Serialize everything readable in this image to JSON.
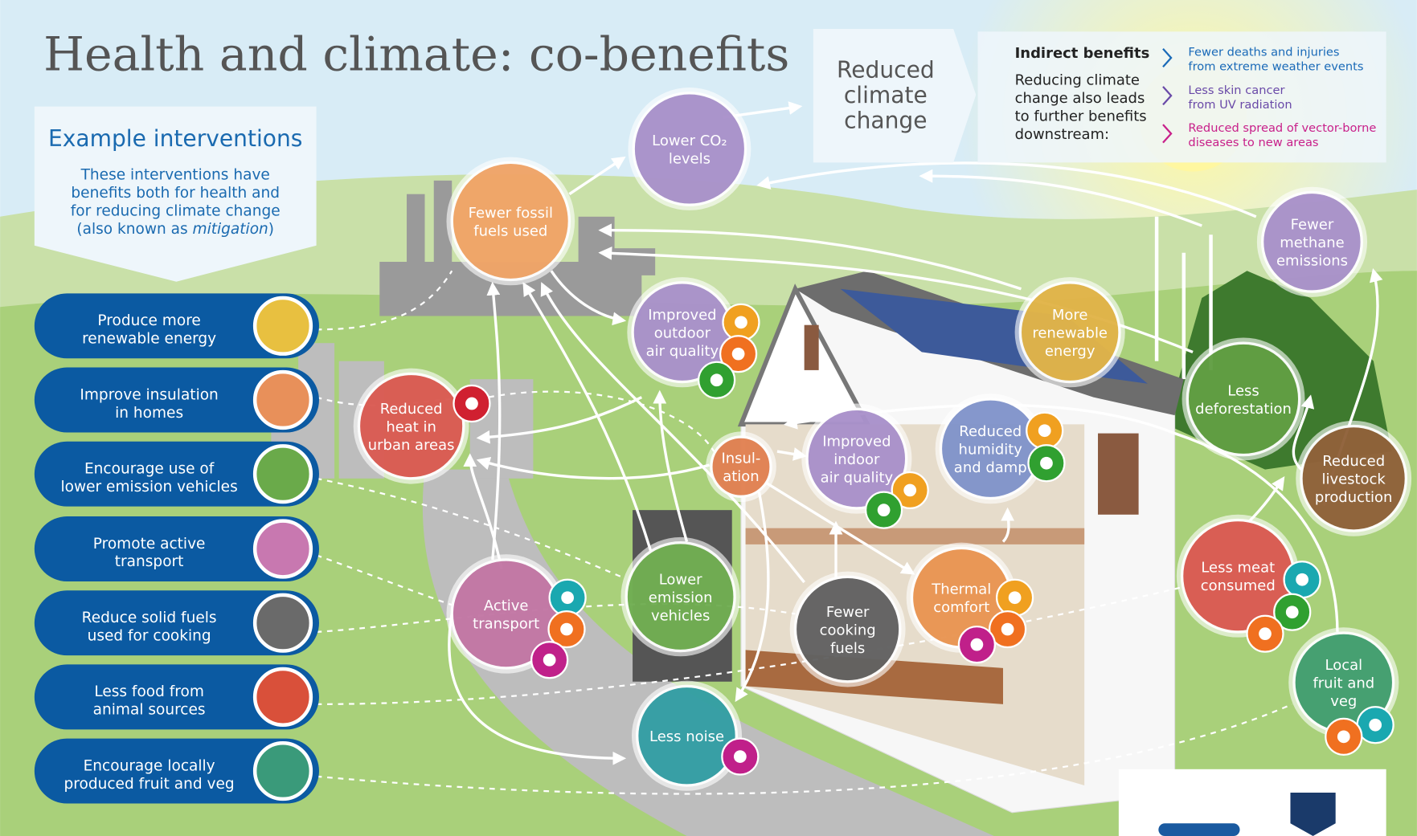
{
  "title": "Health and climate: co-benefits",
  "example_interventions": {
    "title": "Example interventions",
    "description": [
      "These interventions have",
      "benefits both for health and",
      "for reducing climate change"
    ],
    "description_end": {
      "before": "(also known as ",
      "italic": "mitigation",
      "after": ")"
    }
  },
  "interventions": [
    {
      "label": [
        "Produce more",
        "renewable energy"
      ],
      "color": "#e8c040"
    },
    {
      "label": [
        "Improve insulation",
        "in homes"
      ],
      "color": "#e8905a"
    },
    {
      "label": [
        "Encourage use of",
        "lower emission vehicles"
      ],
      "color": "#6aaa4a"
    },
    {
      "label": [
        "Promote active",
        "transport"
      ],
      "color": "#c878b0"
    },
    {
      "label": [
        "Reduce solid fuels",
        "used for cooking"
      ],
      "color": "#6a6a6a"
    },
    {
      "label": [
        "Less food from",
        "animal sources"
      ],
      "color": "#d9503a"
    },
    {
      "label": [
        "Encourage locally",
        "produced fruit and veg"
      ],
      "color": "#3a9a7a"
    }
  ],
  "reduced_climate_change": [
    "Reduced",
    "climate",
    "change"
  ],
  "indirect_benefits": {
    "title": "Indirect benefits",
    "description": [
      "Reducing climate",
      "change also leads",
      "to further benefits",
      "downstream:"
    ],
    "items": [
      {
        "label": [
          "Fewer deaths and injuries",
          "from extreme weather events"
        ],
        "color": "#1a6ab8"
      },
      {
        "label": [
          "Less skin cancer",
          "from UV radiation"
        ],
        "color": "#6a4aa8"
      },
      {
        "label": [
          "Reduced spread of vector-borne",
          "diseases to new areas"
        ],
        "color": "#c8208a"
      }
    ]
  },
  "nodes": [
    {
      "label": [
        "Fewer fossil",
        "fuels used"
      ],
      "color": "#f0a060"
    },
    {
      "label": [
        "Lower CO₂",
        "levels"
      ],
      "color": "#a58cc8"
    },
    {
      "label": [
        "Improved",
        "outdoor",
        "air quality"
      ],
      "color": "#a58cc8"
    },
    {
      "label": [
        "Reduced",
        "heat in",
        "urban areas"
      ],
      "color": "#d9534a"
    },
    {
      "label": [
        "Insul-",
        "ation"
      ],
      "color": "#e07b4a"
    },
    {
      "label": [
        "Improved",
        "indoor",
        "air quality"
      ],
      "color": "#a58cc8"
    },
    {
      "label": [
        "Reduced",
        "humidity",
        "and damp"
      ],
      "color": "#7b8fc8"
    },
    {
      "label": [
        "More",
        "renewable",
        "energy"
      ],
      "color": "#e0b040"
    },
    {
      "label": [
        "Fewer",
        "methane",
        "emissions"
      ],
      "color": "#a58cc8"
    },
    {
      "label": [
        "Less",
        "deforestation"
      ],
      "color": "#5a9a3a"
    },
    {
      "label": [
        "Reduced",
        "livestock",
        "production"
      ],
      "color": "#8a5a30"
    },
    {
      "label": [
        "Less meat",
        "consumed"
      ],
      "color": "#d9534a"
    },
    {
      "label": [
        "Local",
        "fruit and",
        "veg"
      ],
      "color": "#3a9a6a"
    },
    {
      "label": [
        "Active",
        "transport"
      ],
      "color": "#c070a0"
    },
    {
      "label": [
        "Lower",
        "emission",
        "vehicles"
      ],
      "color": "#6aaa4a"
    },
    {
      "label": [
        "Fewer",
        "cooking",
        "fuels"
      ],
      "color": "#5a5a5a"
    },
    {
      "label": [
        "Thermal",
        "comfort"
      ],
      "color": "#e8904a"
    },
    {
      "label": [
        "Less noise"
      ],
      "color": "#2a9aa0"
    }
  ]
}
